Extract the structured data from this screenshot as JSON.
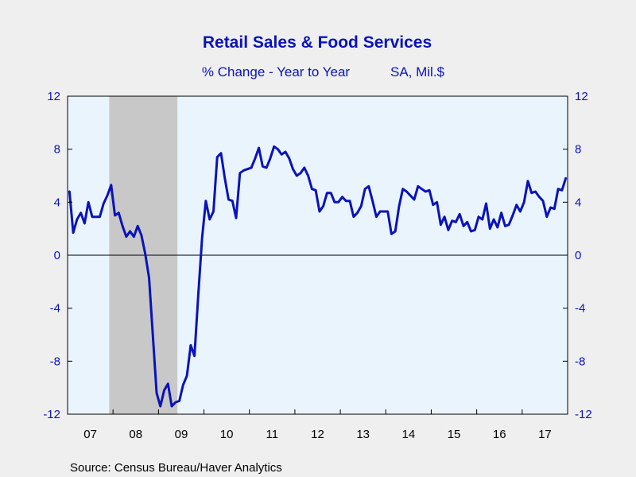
{
  "chart_data": {
    "type": "line",
    "title": "Retail Sales & Food Services",
    "subtitle": "% Change - Year to Year",
    "units": "SA, Mil.$",
    "source": "Source:  Census Bureau/Haver Analytics",
    "ylim": [
      -12,
      12
    ],
    "yticks": [
      12,
      8,
      4,
      0,
      -4,
      -8,
      -12
    ],
    "ytick_labels": [
      "12",
      "8",
      "4",
      "0",
      "-4",
      "-8",
      "-12"
    ],
    "x_start": 2007.0,
    "x_end": 2018.0,
    "xtick_labels": [
      "07",
      "08",
      "09",
      "10",
      "11",
      "12",
      "13",
      "14",
      "15",
      "16",
      "17"
    ],
    "grid": false,
    "zero_line": true,
    "recession": {
      "start": "2007-12",
      "end": "2009-06"
    },
    "colors": {
      "line": "#0a13b8",
      "text": "#0a13b8",
      "plot_bg": "#eaf4fc",
      "page_bg": "#efefef",
      "recession": "#c8c8c8"
    },
    "series": [
      {
        "x": [
          "2007-01",
          "2007-02",
          "2007-03",
          "2007-04",
          "2007-05",
          "2007-06",
          "2007-07",
          "2007-08",
          "2007-09",
          "2007-10",
          "2007-11",
          "2007-12",
          "2008-01",
          "2008-02",
          "2008-03",
          "2008-04",
          "2008-05",
          "2008-06",
          "2008-07",
          "2008-08",
          "2008-09",
          "2008-10",
          "2008-11",
          "2008-12",
          "2009-01",
          "2009-02",
          "2009-03",
          "2009-04",
          "2009-05",
          "2009-06",
          "2009-07",
          "2009-08",
          "2009-09",
          "2009-10",
          "2009-11",
          "2009-12",
          "2010-01",
          "2010-02",
          "2010-03",
          "2010-04",
          "2010-05",
          "2010-06",
          "2010-07",
          "2010-08",
          "2010-09",
          "2010-10",
          "2010-11",
          "2010-12",
          "2011-01",
          "2011-02",
          "2011-03",
          "2011-04",
          "2011-05",
          "2011-06",
          "2011-07",
          "2011-08",
          "2011-09",
          "2011-10",
          "2011-11",
          "2011-12",
          "2012-01",
          "2012-02",
          "2012-03",
          "2012-04",
          "2012-05",
          "2012-06",
          "2012-07",
          "2012-08",
          "2012-09",
          "2012-10",
          "2012-11",
          "2012-12",
          "2013-01",
          "2013-02",
          "2013-03",
          "2013-04",
          "2013-05",
          "2013-06",
          "2013-07",
          "2013-08",
          "2013-09",
          "2013-10",
          "2013-11",
          "2013-12",
          "2014-01",
          "2014-02",
          "2014-03",
          "2014-04",
          "2014-05",
          "2014-06",
          "2014-07",
          "2014-08",
          "2014-09",
          "2014-10",
          "2014-11",
          "2014-12",
          "2015-01",
          "2015-02",
          "2015-03",
          "2015-04",
          "2015-05",
          "2015-06",
          "2015-07",
          "2015-08",
          "2015-09",
          "2015-10",
          "2015-11",
          "2015-12",
          "2016-01",
          "2016-02",
          "2016-03",
          "2016-04",
          "2016-05",
          "2016-06",
          "2016-07",
          "2016-08",
          "2016-09",
          "2016-10",
          "2016-11",
          "2016-12",
          "2017-01",
          "2017-02",
          "2017-03",
          "2017-04",
          "2017-05",
          "2017-06",
          "2017-07",
          "2017-08",
          "2017-09",
          "2017-10",
          "2017-11",
          "2017-12"
        ],
        "values": [
          4.8,
          1.7,
          2.7,
          3.2,
          2.4,
          4.0,
          2.9,
          2.9,
          2.9,
          3.9,
          4.5,
          5.3,
          3.0,
          3.2,
          2.2,
          1.4,
          1.8,
          1.4,
          2.2,
          1.5,
          0.1,
          -1.7,
          -6.0,
          -10.4,
          -11.4,
          -10.2,
          -9.7,
          -11.4,
          -11.1,
          -11.0,
          -9.8,
          -9.1,
          -6.8,
          -7.6,
          -3.0,
          1.3,
          4.1,
          2.7,
          3.3,
          7.4,
          7.7,
          5.8,
          4.2,
          4.1,
          2.8,
          6.2,
          6.4,
          6.5,
          6.6,
          7.3,
          8.1,
          6.7,
          6.6,
          7.3,
          8.2,
          8.0,
          7.6,
          7.8,
          7.3,
          6.5,
          6.0,
          6.2,
          6.6,
          6.0,
          5.0,
          4.9,
          3.3,
          3.7,
          4.7,
          4.7,
          4.0,
          4.0,
          4.4,
          4.1,
          4.1,
          2.9,
          3.2,
          3.7,
          5.0,
          5.2,
          4.1,
          2.9,
          3.3,
          3.3,
          3.3,
          1.6,
          1.8,
          3.7,
          5.0,
          4.8,
          4.5,
          4.2,
          5.2,
          5.0,
          4.8,
          4.9,
          3.8,
          4.0,
          2.3,
          2.9,
          1.9,
          2.6,
          2.5,
          3.1,
          2.2,
          2.5,
          1.8,
          1.9,
          2.9,
          2.7,
          3.9,
          2.0,
          2.7,
          2.1,
          3.2,
          2.2,
          2.3,
          3.0,
          3.8,
          3.3,
          4.0,
          5.6,
          4.7,
          4.8,
          4.4,
          4.1,
          2.9,
          3.6,
          3.5,
          5.0,
          4.9,
          5.8
        ]
      }
    ]
  }
}
